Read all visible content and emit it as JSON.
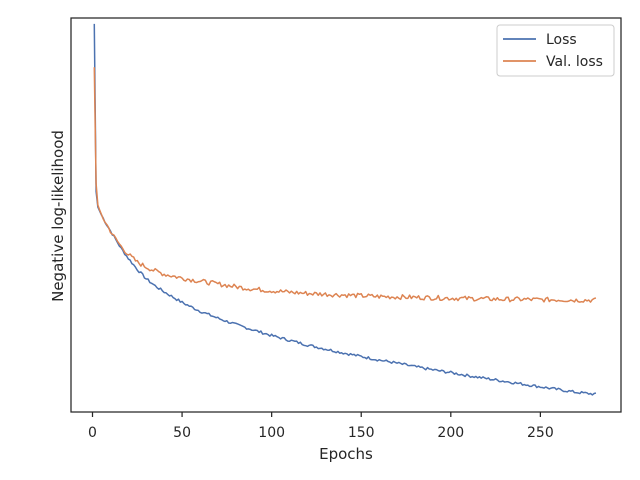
{
  "chart_data": {
    "type": "line",
    "title": "",
    "xlabel": "Epochs",
    "ylabel": "Negative log-likelihood",
    "xlim": [
      -12,
      295
    ],
    "ylim": [
      0,
      1
    ],
    "xticks": [
      0,
      50,
      100,
      150,
      200,
      250
    ],
    "yticks_visible": false,
    "grid": false,
    "legend": "top-right",
    "series": [
      {
        "name": "Loss",
        "color": "#4c72b0",
        "x": [
          1,
          2,
          3,
          5,
          8,
          12,
          16,
          20,
          25,
          30,
          35,
          40,
          50,
          60,
          70,
          80,
          90,
          100,
          110,
          120,
          130,
          140,
          150,
          160,
          170,
          180,
          190,
          200,
          210,
          220,
          230,
          240,
          250,
          260,
          270,
          281
        ],
        "y": [
          0.985,
          0.56,
          0.52,
          0.5,
          0.475,
          0.445,
          0.415,
          0.39,
          0.362,
          0.338,
          0.32,
          0.305,
          0.278,
          0.256,
          0.238,
          0.222,
          0.208,
          0.194,
          0.182,
          0.17,
          0.16,
          0.15,
          0.141,
          0.132,
          0.124,
          0.115,
          0.107,
          0.1,
          0.092,
          0.085,
          0.078,
          0.071,
          0.064,
          0.057,
          0.05,
          0.045
        ]
      },
      {
        "name": "Val. loss",
        "color": "#dd8452",
        "x": [
          1,
          2,
          3,
          5,
          8,
          12,
          16,
          20,
          25,
          30,
          35,
          40,
          50,
          60,
          70,
          80,
          90,
          100,
          110,
          120,
          130,
          140,
          150,
          160,
          170,
          180,
          190,
          200,
          210,
          220,
          230,
          240,
          250,
          260,
          270,
          281
        ],
        "y": [
          0.875,
          0.58,
          0.525,
          0.5,
          0.475,
          0.445,
          0.42,
          0.4,
          0.38,
          0.368,
          0.358,
          0.35,
          0.34,
          0.332,
          0.325,
          0.318,
          0.312,
          0.308,
          0.304,
          0.301,
          0.299,
          0.297,
          0.295,
          0.293,
          0.292,
          0.291,
          0.29,
          0.289,
          0.288,
          0.287,
          0.286,
          0.286,
          0.285,
          0.285,
          0.284,
          0.284
        ]
      }
    ]
  }
}
